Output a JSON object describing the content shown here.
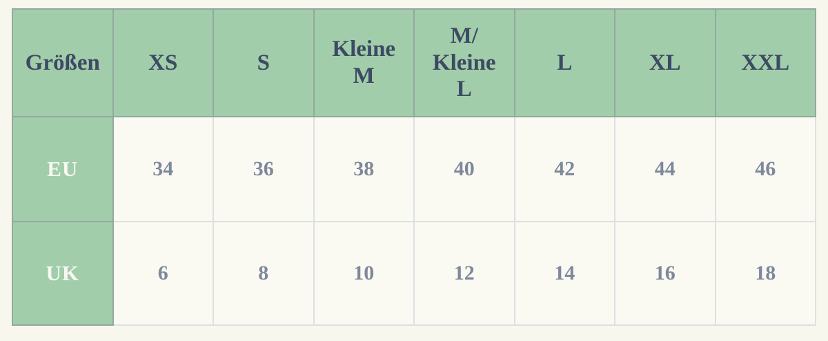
{
  "colors": {
    "page_background": "#f8f7ee",
    "header_green": "#a2cdaa",
    "header_text": "#3d4a63",
    "row_label_text": "#f6f8f1",
    "value_text": "#7e889c"
  },
  "size_table": {
    "column_headers": [
      "Größen",
      "XS",
      "S",
      "Kleine\nM",
      "M/\nKleine\nL",
      "L",
      "XL",
      "XXL"
    ],
    "rows": [
      {
        "label": "EU",
        "values": [
          "34",
          "36",
          "38",
          "40",
          "42",
          "44",
          "46"
        ]
      },
      {
        "label": "UK",
        "values": [
          "6",
          "8",
          "10",
          "12",
          "14",
          "16",
          "18"
        ]
      }
    ]
  },
  "chart_data": {
    "type": "table",
    "title": "Größen",
    "columns": [
      "Größen",
      "XS",
      "S",
      "Kleine M",
      "M/Kleine L",
      "L",
      "XL",
      "XXL"
    ],
    "rows": [
      [
        "EU",
        34,
        36,
        38,
        40,
        42,
        44,
        46
      ],
      [
        "UK",
        6,
        8,
        10,
        12,
        14,
        16,
        18
      ]
    ],
    "legend_position": "none",
    "grid": true
  }
}
